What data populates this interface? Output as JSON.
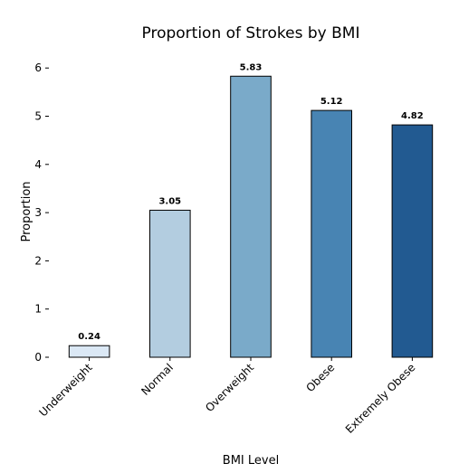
{
  "chart_data": {
    "type": "bar",
    "title": "Proportion of Strokes by BMI",
    "xlabel": "BMI Level",
    "ylabel": "Proportion",
    "categories": [
      "Underweight",
      "Normal",
      "Overweight",
      "Obese",
      "Extremely Obese"
    ],
    "values": [
      0.24,
      3.05,
      5.83,
      5.12,
      4.82
    ],
    "data_labels": [
      "0.24",
      "3.05",
      "5.83",
      "5.12",
      "4.82"
    ],
    "yticks": [
      0,
      1,
      2,
      3,
      4,
      5,
      6
    ],
    "ylim": [
      0,
      6.3
    ],
    "colors": [
      "#dbe8f5",
      "#b3cde0",
      "#7aaac9",
      "#4884b3",
      "#225a91"
    ],
    "grid": false,
    "legend": "none"
  }
}
